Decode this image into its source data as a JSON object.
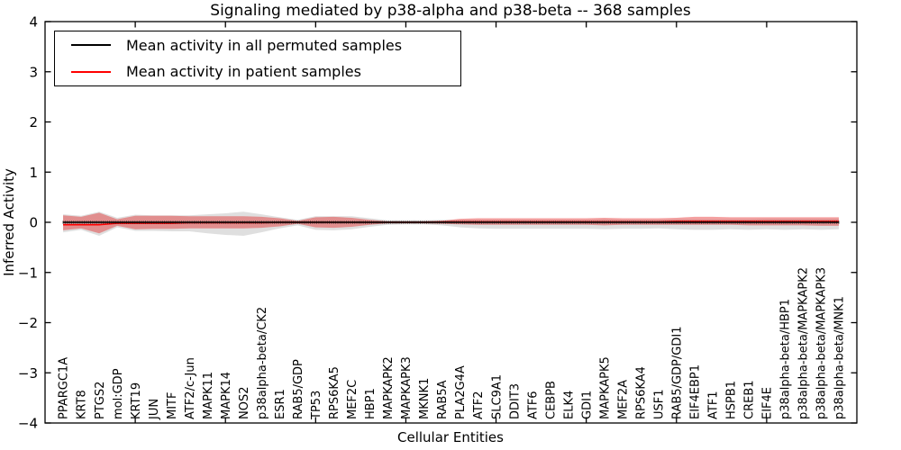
{
  "figure": {
    "title": "Signaling mediated by p38-alpha and p38-beta -- 368 samples"
  },
  "legend": {
    "items": [
      {
        "label": "Mean activity in all permuted samples",
        "color": "#000000"
      },
      {
        "label": "Mean activity in patient samples",
        "color": "#ff0000"
      }
    ]
  },
  "axes": {
    "x_label": "Cellular Entities",
    "y_label": "Inferred Activity",
    "y_tick_values": [
      4,
      3,
      2,
      1,
      0,
      -1,
      -2,
      -3,
      -4
    ],
    "y_tick_labels": [
      "4",
      "3",
      "2",
      "1",
      "0",
      "−1",
      "−2",
      "−3",
      "−4"
    ],
    "x_major_tick_values": [
      5,
      10,
      15,
      20,
      25,
      30,
      35,
      40,
      45
    ]
  },
  "chart_data": {
    "type": "area",
    "title": "Signaling mediated by p38-alpha and p38-beta -- 368 samples",
    "xlabel": "Cellular Entities",
    "ylabel": "Inferred Activity",
    "ylim": [
      -4,
      4
    ],
    "xlim": [
      0,
      45
    ],
    "grid": false,
    "legend_position": "upper left",
    "legend": [
      "Mean activity in all permuted samples",
      "Mean activity in patient samples"
    ],
    "sample_count": 368,
    "categories": [
      "PPARGC1A",
      "KRT8",
      "PTGS2",
      "mol:GDP",
      "KRT19",
      "JUN",
      "MITF",
      "ATF2/c-Jun",
      "MAPK11",
      "MAPK14",
      "NOS2",
      "p38alpha-beta/CK2",
      "ESR1",
      "RAB5/GDP",
      "TP53",
      "RPS6KA5",
      "MEF2C",
      "HBP1",
      "MAPKAPK2",
      "MAPKAPK3",
      "MKNK1",
      "RAB5A",
      "PLA2G4A",
      "ATF2",
      "SLC9A1",
      "DDIT3",
      "ATF6",
      "CEBPB",
      "ELK4",
      "GDI1",
      "MAPKAPK5",
      "MEF2A",
      "RPS6KA4",
      "USF1",
      "RAB5/GDP/GDI1",
      "EIF4EBP1",
      "ATF1",
      "HSPB1",
      "CREB1",
      "EIF4E",
      "p38alpha-beta/HBP1",
      "p38alpha-beta/MAPKAPK2",
      "p38alpha-beta/MAPKAPK3",
      "p38alpha-beta/MNK1"
    ],
    "series": [
      {
        "name": "permuted_envelope",
        "role": "band",
        "color": "rgba(110,110,110,0.22)",
        "upper": [
          0.16,
          0.13,
          0.21,
          0.09,
          0.15,
          0.14,
          0.14,
          0.14,
          0.16,
          0.18,
          0.21,
          0.16,
          0.1,
          0.05,
          0.12,
          0.12,
          0.12,
          0.08,
          0.04,
          0.04,
          0.04,
          0.05,
          0.05,
          0.05,
          0.05,
          0.05,
          0.05,
          0.05,
          0.05,
          0.05,
          0.06,
          0.05,
          0.05,
          0.05,
          0.06,
          0.06,
          0.06,
          0.06,
          0.06,
          0.07,
          0.07,
          0.07,
          0.07,
          0.07
        ],
        "lower": [
          -0.2,
          -0.15,
          -0.27,
          -0.1,
          -0.17,
          -0.17,
          -0.18,
          -0.18,
          -0.22,
          -0.25,
          -0.27,
          -0.2,
          -0.12,
          -0.06,
          -0.15,
          -0.16,
          -0.14,
          -0.09,
          -0.05,
          -0.04,
          -0.04,
          -0.06,
          -0.1,
          -0.12,
          -0.13,
          -0.13,
          -0.13,
          -0.13,
          -0.13,
          -0.13,
          -0.14,
          -0.13,
          -0.13,
          -0.12,
          -0.14,
          -0.15,
          -0.15,
          -0.14,
          -0.15,
          -0.14,
          -0.15,
          -0.14,
          -0.15,
          -0.14
        ]
      },
      {
        "name": "patient_envelope",
        "role": "band",
        "color": "rgba(228,30,32,0.42)",
        "upper": [
          0.14,
          0.11,
          0.19,
          0.06,
          0.13,
          0.13,
          0.13,
          0.12,
          0.12,
          0.12,
          0.12,
          0.11,
          0.08,
          0.03,
          0.1,
          0.11,
          0.09,
          0.05,
          0.02,
          0.02,
          0.02,
          0.03,
          0.07,
          0.08,
          0.08,
          0.08,
          0.08,
          0.08,
          0.08,
          0.08,
          0.09,
          0.08,
          0.08,
          0.08,
          0.09,
          0.11,
          0.11,
          0.1,
          0.1,
          0.1,
          0.1,
          0.1,
          0.1,
          0.1
        ],
        "lower": [
          -0.16,
          -0.12,
          -0.22,
          -0.07,
          -0.14,
          -0.13,
          -0.13,
          -0.12,
          -0.12,
          -0.12,
          -0.12,
          -0.11,
          -0.08,
          -0.03,
          -0.1,
          -0.11,
          -0.09,
          -0.05,
          -0.02,
          -0.02,
          -0.02,
          -0.03,
          -0.04,
          -0.05,
          -0.05,
          -0.05,
          -0.05,
          -0.05,
          -0.05,
          -0.05,
          -0.06,
          -0.05,
          -0.05,
          -0.05,
          -0.05,
          -0.05,
          -0.05,
          -0.05,
          -0.06,
          -0.06,
          -0.06,
          -0.06,
          -0.07,
          -0.07
        ]
      },
      {
        "name": "patient_mean",
        "role": "line",
        "color": "#ff0000",
        "values": [
          -0.05,
          -0.05,
          -0.05,
          -0.02,
          -0.02,
          -0.02,
          -0.02,
          -0.01,
          -0.01,
          -0.01,
          -0.01,
          -0.01,
          0,
          0,
          0,
          0,
          0,
          0,
          0,
          0,
          0,
          0.01,
          0.01,
          0.01,
          0.01,
          0.01,
          0.01,
          0.01,
          0.01,
          0.01,
          0.01,
          0.01,
          0.01,
          0.01,
          0.02,
          0.02,
          0.02,
          0.02,
          0.02,
          0.02,
          0.02,
          0.02,
          0.02,
          0.02
        ]
      },
      {
        "name": "permuted_mean",
        "role": "line",
        "color": "#000000",
        "values": [
          0,
          0,
          0,
          0,
          0,
          0,
          0,
          0,
          0,
          0,
          0,
          0,
          0,
          0,
          0,
          0,
          0,
          0,
          0,
          0,
          0,
          0,
          0,
          0,
          0,
          0,
          0,
          0,
          0,
          0,
          0,
          0,
          0,
          0,
          0,
          0,
          0,
          0,
          0,
          0,
          0,
          0,
          0,
          0
        ]
      }
    ]
  }
}
